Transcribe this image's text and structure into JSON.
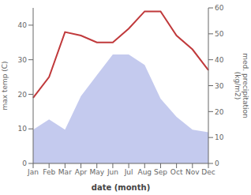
{
  "chart_data": {
    "type": "line",
    "categories": [
      "Jan",
      "Feb",
      "Mar",
      "Apr",
      "May",
      "Jun",
      "Jul",
      "Aug",
      "Sep",
      "Oct",
      "Nov",
      "Dec"
    ],
    "xlabel": "date (month)",
    "ylabel": "max temp (C)",
    "y2label": "med. precipitation\n(kg/m2)",
    "ylim": [
      0,
      45
    ],
    "yticks": [
      0,
      10,
      20,
      30,
      40
    ],
    "y2lim": [
      0,
      60
    ],
    "y2ticks": [
      0,
      10,
      20,
      30,
      40,
      50,
      60
    ],
    "grid": false,
    "series": [
      {
        "type": "area",
        "axis": "y2",
        "color": "#b0b8e8",
        "values": [
          13,
          17,
          13,
          26,
          34,
          42,
          42,
          38,
          25,
          18,
          13,
          12
        ]
      },
      {
        "type": "line",
        "color": "#c0393b",
        "values": [
          19,
          25,
          38,
          37,
          35,
          35,
          39,
          44,
          44,
          37,
          33,
          27
        ]
      }
    ]
  }
}
